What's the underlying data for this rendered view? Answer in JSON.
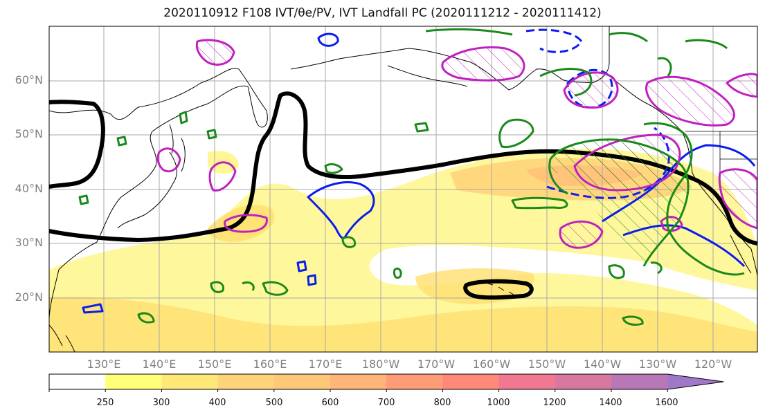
{
  "title": "2020110912 F108 IVT/θe/PV, IVT Landfall PC (2020111212 - 2020111412)",
  "map": {
    "lat_labels": [
      "60°N",
      "50°N",
      "40°N",
      "30°N",
      "20°N"
    ],
    "lon_labels": [
      "130°E",
      "140°E",
      "150°E",
      "160°E",
      "170°E",
      "180°W",
      "170°W",
      "160°W",
      "150°W",
      "140°W",
      "130°W",
      "120°W"
    ],
    "colors": {
      "ivt_fill_light": "#fff68a",
      "ivt_fill_mid": "#ffe070",
      "ivt_fill_dark": "#ffc27a",
      "thick_contour": "#000000",
      "blue_contour": "#0a1cf0",
      "magenta_contour": "#c020c0",
      "green_contour": "#1a8a1a",
      "gridline": "#a8a8a8",
      "coastline": "#000000"
    }
  },
  "colorbar": {
    "ticks": [
      "250",
      "300",
      "400",
      "500",
      "600",
      "700",
      "800",
      "1000",
      "1200",
      "1400",
      "1600"
    ],
    "colors": [
      "#ffffff",
      "#ffff78",
      "#ffe878",
      "#ffd478",
      "#ffc878",
      "#ffb478",
      "#ff9c78",
      "#ff8878",
      "#f07890",
      "#d878a0",
      "#b878b8",
      "#a078c8"
    ]
  }
}
